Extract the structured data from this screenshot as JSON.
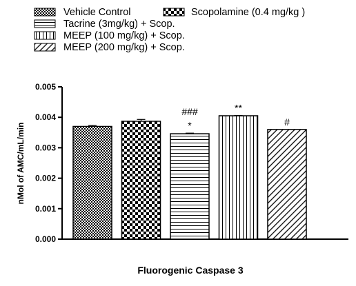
{
  "chart_data": {
    "type": "bar",
    "xlabel": "Fluorogenic Caspase 3",
    "ylabel": "nMol of AMC/mL/min",
    "ylim": [
      0,
      0.005
    ],
    "yticks": [
      "0.000",
      "0.001",
      "0.002",
      "0.003",
      "0.004",
      "0.005"
    ],
    "legend_position": "top",
    "bars": [
      {
        "name": "Vehicle Control",
        "value": 0.0037,
        "error": 3e-05,
        "pattern": "checker-small",
        "annotation": []
      },
      {
        "name": "Scopolamine (0.4 mg/kg )",
        "value": 0.00387,
        "error": 6e-05,
        "pattern": "checker-large",
        "annotation": []
      },
      {
        "name": "Tacrine (3mg/kg) + Scop.",
        "value": 0.00346,
        "error": 2e-05,
        "pattern": "horizontal-lines",
        "annotation": [
          "###",
          "*"
        ]
      },
      {
        "name": "MEEP (100 mg/kg) + Scop.",
        "value": 0.00405,
        "error": 1e-05,
        "pattern": "vertical-lines",
        "annotation": [
          "**"
        ]
      },
      {
        "name": "MEEP (200 mg/kg) + Scop.",
        "value": 0.0036,
        "error": 0.0,
        "pattern": "diagonal-lines",
        "annotation": [
          "#"
        ]
      }
    ]
  }
}
